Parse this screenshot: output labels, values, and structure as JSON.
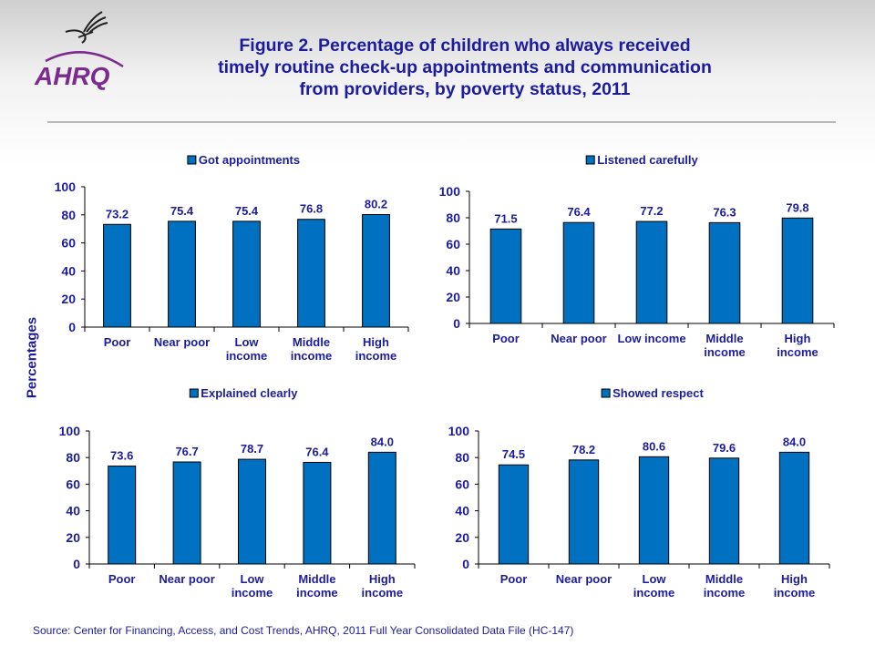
{
  "title": [
    "Figure 2. Percentage of children who always received",
    "timely routine check-up appointments and communication",
    "from providers, by poverty status, 2011"
  ],
  "logo_text": "AHRQ",
  "ylabel": "Percentages",
  "source": "Source: Center for Financing, Access, and Cost Trends, AHRQ, 2011 Full Year Consolidated Data File (HC-147)",
  "colors": {
    "bar": "#0070c0",
    "text": "#1c1c9c",
    "logo": "#7b2a8e"
  },
  "chart_data": [
    {
      "type": "bar",
      "legend": "Got appointments",
      "legend_placement": "top",
      "categories": [
        [
          "Poor"
        ],
        [
          "Near poor"
        ],
        [
          "Low",
          "income"
        ],
        [
          "Middle",
          "income"
        ],
        [
          "High",
          "income"
        ]
      ],
      "values": [
        73.2,
        75.4,
        75.4,
        76.8,
        80.2
      ],
      "ylim": [
        0,
        100
      ],
      "yticks": [
        0,
        20,
        40,
        60,
        80,
        100
      ],
      "grid": false
    },
    {
      "type": "bar",
      "legend": "Listened carefully",
      "legend_placement": "top",
      "categories": [
        [
          "Poor"
        ],
        [
          "Near poor"
        ],
        [
          "Low income"
        ],
        [
          "Middle",
          "income"
        ],
        [
          "High",
          "income"
        ]
      ],
      "values": [
        71.5,
        76.4,
        77.2,
        76.3,
        79.8
      ],
      "ylim": [
        0,
        100
      ],
      "yticks": [
        0,
        20,
        40,
        60,
        80,
        100
      ],
      "grid": false
    },
    {
      "type": "bar",
      "legend": "Explained clearly",
      "legend_placement": "top",
      "categories": [
        [
          "Poor"
        ],
        [
          "Near poor"
        ],
        [
          "Low",
          "income"
        ],
        [
          "Middle",
          "income"
        ],
        [
          "High",
          "income"
        ]
      ],
      "values": [
        73.6,
        76.7,
        78.7,
        76.4,
        84.0
      ],
      "ylim": [
        0,
        100
      ],
      "yticks": [
        0,
        20,
        40,
        60,
        80,
        100
      ],
      "grid": false
    },
    {
      "type": "bar",
      "legend": "Showed respect",
      "legend_placement": "top",
      "categories": [
        [
          "Poor"
        ],
        [
          "Near poor"
        ],
        [
          "Low",
          "income"
        ],
        [
          "Middle",
          "income"
        ],
        [
          "High",
          "income"
        ]
      ],
      "values": [
        74.5,
        78.2,
        80.6,
        79.6,
        84.0
      ],
      "ylim": [
        0,
        100
      ],
      "yticks": [
        0,
        20,
        40,
        60,
        80,
        100
      ],
      "grid": false
    }
  ]
}
